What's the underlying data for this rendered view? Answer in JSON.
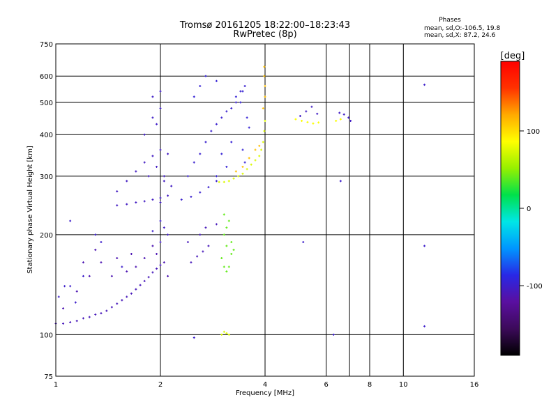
{
  "header": {
    "title": "Tromsø 20161205 18:22:00–18:23:43",
    "subtitle": "RwPretec (8p)",
    "stats_title": "Phases",
    "stats_line1": "mean, sd,O:-106.5, 19.8",
    "stats_line2": "mean, sd,X:  87.2, 24.6"
  },
  "chart_data": {
    "type": "scatter",
    "title": "Tromsø 20161205 18:22:00–18:23:43",
    "subtitle": "RwPretec (8p)",
    "xlabel": "Frequency [MHz]",
    "ylabel": "Stationary phase Virtual Height [km]",
    "x_scale": "log",
    "y_scale": "log",
    "xlim": [
      1,
      16
    ],
    "ylim": [
      75,
      750
    ],
    "x_ticks": [
      1,
      2,
      4,
      6,
      8,
      10,
      16
    ],
    "x_tick_labels": [
      "1",
      "2",
      "4",
      "6",
      "8",
      "10",
      "16"
    ],
    "y_ticks": [
      75,
      100,
      200,
      300,
      400,
      500,
      600,
      750
    ],
    "y_tick_labels": [
      "75",
      "100",
      "200",
      "300",
      "400",
      "500",
      "600",
      "750"
    ],
    "grid_x": [
      2,
      4,
      6,
      7,
      8,
      10
    ],
    "grid_y": [
      100,
      200,
      300,
      400,
      500,
      600
    ],
    "grid": true,
    "colorbar": {
      "label": "[deg]",
      "range": [
        -190,
        190
      ],
      "ticks": [
        100,
        0,
        -100
      ],
      "tick_labels": [
        "100",
        "0",
        "-100"
      ],
      "colors": [
        "#000000",
        "#3c0a5a",
        "#5a0fa0",
        "#2828e6",
        "#0096ff",
        "#00e6e6",
        "#00e14b",
        "#96f000",
        "#ffff00",
        "#ffaa00",
        "#ff3200",
        "#ff0000"
      ]
    },
    "series": [
      {
        "phase": -108,
        "points": [
          [
            1.0,
            108
          ],
          [
            1.05,
            108
          ],
          [
            1.1,
            109
          ],
          [
            1.15,
            110
          ],
          [
            1.2,
            112
          ],
          [
            1.25,
            113
          ],
          [
            1.3,
            115
          ],
          [
            1.35,
            116
          ],
          [
            1.4,
            118
          ],
          [
            1.45,
            121
          ],
          [
            1.5,
            124
          ],
          [
            1.55,
            127
          ],
          [
            1.6,
            130
          ],
          [
            1.65,
            133
          ],
          [
            1.7,
            137
          ],
          [
            1.75,
            141
          ],
          [
            1.8,
            145
          ],
          [
            1.85,
            149
          ],
          [
            1.9,
            154
          ],
          [
            1.95,
            158
          ],
          [
            2.0,
            162
          ]
        ]
      },
      {
        "phase": -112,
        "points": [
          [
            1.05,
            120
          ],
          [
            1.15,
            135
          ],
          [
            1.2,
            165
          ],
          [
            1.25,
            150
          ],
          [
            1.3,
            180
          ],
          [
            1.35,
            165
          ],
          [
            1.45,
            150
          ],
          [
            1.5,
            170
          ],
          [
            1.6,
            155
          ],
          [
            1.65,
            175
          ],
          [
            1.7,
            160
          ],
          [
            1.8,
            170
          ],
          [
            1.9,
            185
          ],
          [
            1.95,
            175
          ],
          [
            2.05,
            165
          ],
          [
            2.1,
            150
          ]
        ]
      },
      {
        "phase": -100,
        "points": [
          [
            1.02,
            130
          ],
          [
            1.06,
            140
          ],
          [
            1.1,
            140
          ],
          [
            1.14,
            125
          ],
          [
            1.2,
            150
          ],
          [
            1.3,
            200
          ],
          [
            1.35,
            190
          ],
          [
            1.55,
            160
          ],
          [
            1.9,
            205
          ],
          [
            2.0,
            220
          ]
        ]
      },
      {
        "phase": -104,
        "points": [
          [
            1.5,
            245
          ],
          [
            1.6,
            247
          ],
          [
            1.7,
            250
          ],
          [
            1.8,
            252
          ],
          [
            1.9,
            255
          ],
          [
            2.0,
            258
          ],
          [
            2.1,
            262
          ],
          [
            1.5,
            270
          ],
          [
            1.6,
            290
          ],
          [
            1.7,
            310
          ],
          [
            1.8,
            330
          ],
          [
            1.9,
            345
          ],
          [
            2.0,
            360
          ],
          [
            2.1,
            350
          ],
          [
            1.85,
            300
          ],
          [
            1.95,
            320
          ],
          [
            2.05,
            290
          ],
          [
            2.15,
            280
          ]
        ]
      },
      {
        "phase": -102,
        "points": [
          [
            1.8,
            400
          ],
          [
            1.9,
            450
          ],
          [
            1.9,
            520
          ],
          [
            2.0,
            540
          ],
          [
            2.0,
            480
          ],
          [
            1.95,
            430
          ]
        ]
      },
      {
        "phase": -103,
        "points": [
          [
            2.0,
            190
          ],
          [
            2.05,
            210
          ],
          [
            2.0,
            250
          ],
          [
            2.05,
            300
          ],
          [
            2.1,
            200
          ]
        ]
      },
      {
        "phase": -98,
        "points": [
          [
            2.3,
            255
          ],
          [
            2.45,
            260
          ],
          [
            2.6,
            268
          ],
          [
            2.75,
            278
          ],
          [
            2.9,
            290
          ],
          [
            2.4,
            300
          ],
          [
            2.5,
            330
          ],
          [
            2.6,
            350
          ],
          [
            2.7,
            380
          ],
          [
            2.8,
            410
          ],
          [
            2.9,
            430
          ],
          [
            3.0,
            450
          ],
          [
            3.1,
            470
          ],
          [
            3.2,
            480
          ],
          [
            3.3,
            500
          ],
          [
            3.4,
            540
          ],
          [
            3.5,
            560
          ]
        ]
      },
      {
        "phase": -95,
        "points": [
          [
            2.5,
            520
          ],
          [
            2.6,
            560
          ],
          [
            2.7,
            600
          ],
          [
            2.9,
            580
          ],
          [
            3.3,
            520
          ],
          [
            3.4,
            500
          ],
          [
            3.45,
            540
          ],
          [
            3.55,
            450
          ],
          [
            3.6,
            420
          ],
          [
            3.0,
            350
          ],
          [
            3.2,
            380
          ],
          [
            3.45,
            360
          ],
          [
            3.5,
            330
          ],
          [
            2.9,
            300
          ],
          [
            3.1,
            320
          ]
        ]
      },
      {
        "phase": -108,
        "points": [
          [
            2.45,
            165
          ],
          [
            2.55,
            172
          ],
          [
            2.65,
            178
          ],
          [
            2.75,
            185
          ],
          [
            2.4,
            190
          ],
          [
            2.6,
            200
          ],
          [
            2.7,
            210
          ],
          [
            2.9,
            215
          ]
        ]
      },
      {
        "phase": 75,
        "points": [
          [
            2.95,
            288
          ],
          [
            3.05,
            288
          ],
          [
            3.15,
            290
          ],
          [
            3.25,
            295
          ],
          [
            3.35,
            300
          ],
          [
            3.45,
            305
          ],
          [
            3.55,
            315
          ],
          [
            3.65,
            325
          ],
          [
            3.75,
            335
          ],
          [
            3.85,
            345
          ],
          [
            3.9,
            360
          ],
          [
            3.95,
            380
          ],
          [
            3.98,
            410
          ],
          [
            4.0,
            440
          ]
        ]
      },
      {
        "phase": 112,
        "points": [
          [
            3.3,
            310
          ],
          [
            3.45,
            320
          ],
          [
            3.6,
            340
          ],
          [
            3.75,
            360
          ],
          [
            3.85,
            370
          ],
          [
            3.95,
            480
          ],
          [
            4.0,
            520
          ],
          [
            4.0,
            560
          ],
          [
            3.98,
            600
          ],
          [
            3.98,
            640
          ]
        ]
      },
      {
        "phase": 40,
        "points": [
          [
            3.0,
            170
          ],
          [
            3.05,
            160
          ],
          [
            3.1,
            155
          ],
          [
            3.15,
            160
          ],
          [
            3.2,
            175
          ],
          [
            3.25,
            180
          ],
          [
            3.1,
            185
          ],
          [
            3.05,
            200
          ],
          [
            3.1,
            210
          ],
          [
            3.15,
            220
          ],
          [
            3.05,
            230
          ],
          [
            3.2,
            190
          ]
        ]
      },
      {
        "phase": 75,
        "points": [
          [
            3.0,
            100
          ],
          [
            3.05,
            102
          ],
          [
            3.1,
            101
          ],
          [
            3.15,
            100
          ]
        ]
      },
      {
        "phase": 85,
        "points": [
          [
            4.9,
            445
          ],
          [
            5.1,
            440
          ],
          [
            5.3,
            436
          ],
          [
            5.5,
            432
          ],
          [
            5.7,
            435
          ],
          [
            6.4,
            440
          ],
          [
            6.6,
            445
          ]
        ]
      },
      {
        "phase": -103,
        "points": [
          [
            5.05,
            455
          ],
          [
            5.25,
            470
          ],
          [
            5.45,
            485
          ],
          [
            5.65,
            462
          ],
          [
            6.55,
            465
          ],
          [
            6.75,
            460
          ],
          [
            6.95,
            450
          ],
          [
            7.05,
            440
          ]
        ]
      },
      {
        "phase": -100,
        "points": [
          [
            11.5,
            565
          ],
          [
            11.5,
            185
          ],
          [
            11.5,
            106
          ],
          [
            5.15,
            190
          ],
          [
            6.6,
            290
          ],
          [
            6.3,
            100
          ],
          [
            1.1,
            220
          ],
          [
            2.5,
            98
          ]
        ]
      }
    ]
  }
}
